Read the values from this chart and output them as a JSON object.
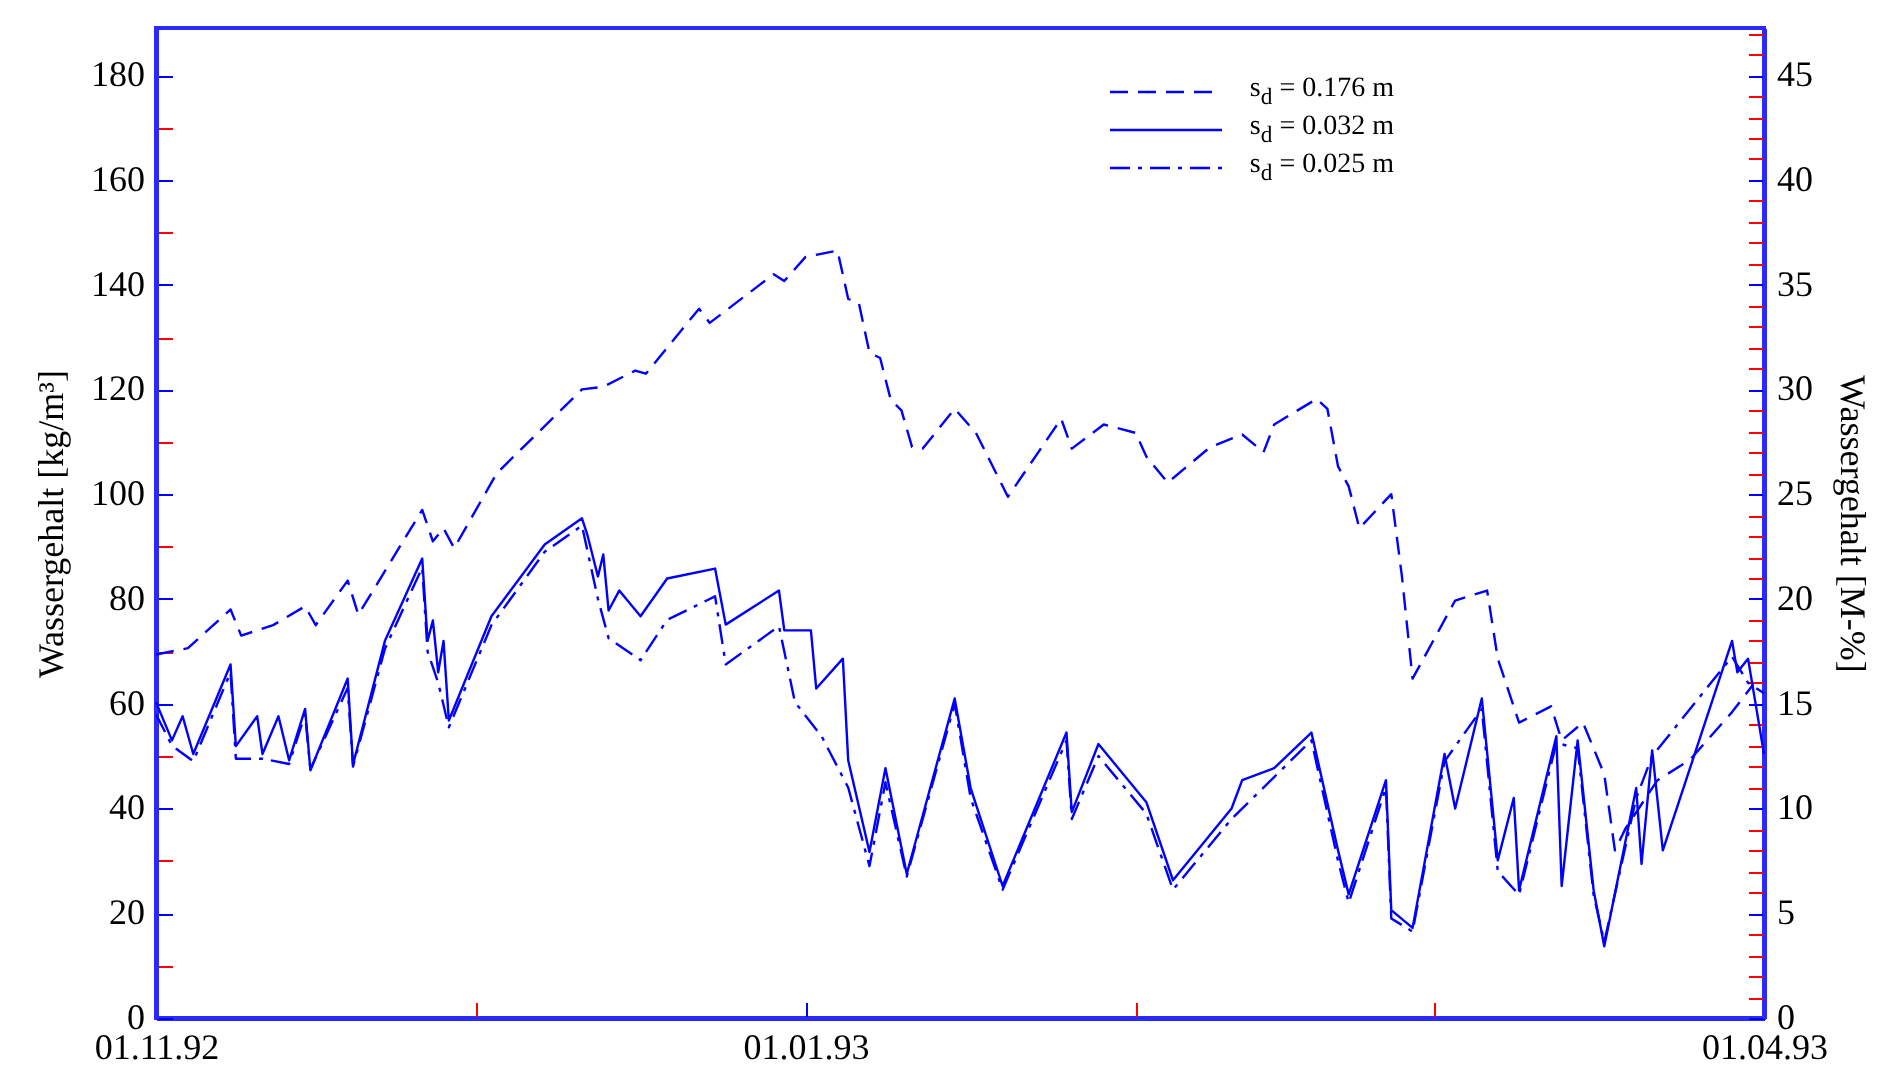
{
  "chart_data": {
    "type": "line",
    "ylabel": "Wassergehalt [kg/m³]",
    "y2label": "Wassergehalt [M-%]",
    "legend": "top right",
    "grid": false,
    "xlim": [
      "1992-11-01",
      "1993-04-01"
    ],
    "xticks": [
      {
        "value": "1992-11-01",
        "label": "01.11.92"
      },
      {
        "value": "1992-12-01",
        "label": null
      },
      {
        "value": "1993-01-01",
        "label": "01.01.93"
      },
      {
        "value": "1993-02-01",
        "label": null
      },
      {
        "value": "1993-03-01",
        "label": null
      },
      {
        "value": "1993-04-01",
        "label": "01.04.93"
      }
    ],
    "ylim": [
      0,
      189
    ],
    "yticks": [
      0,
      {
        "value": 10,
        "label": null
      },
      20,
      {
        "value": 30,
        "label": null
      },
      40,
      {
        "value": 50,
        "label": null
      },
      60,
      {
        "value": 70,
        "label": null
      },
      80,
      {
        "value": 90,
        "label": null
      },
      100,
      {
        "value": 110,
        "label": null
      },
      120,
      {
        "value": 130,
        "label": null
      },
      140,
      {
        "value": 150,
        "label": null
      },
      160,
      {
        "value": 170,
        "label": null
      },
      180
    ],
    "y2lim": [
      0,
      47.25
    ],
    "y2ticks": [
      0,
      {
        "value": 1,
        "label": null
      },
      {
        "value": 2,
        "label": null
      },
      {
        "value": 3,
        "label": null
      },
      {
        "value": 4,
        "label": null
      },
      5,
      {
        "value": 6,
        "label": null
      },
      {
        "value": 7,
        "label": null
      },
      {
        "value": 8,
        "label": null
      },
      {
        "value": 9,
        "label": null
      },
      10,
      {
        "value": 11,
        "label": null
      },
      {
        "value": 12,
        "label": null
      },
      {
        "value": 13,
        "label": null
      },
      {
        "value": 14,
        "label": null
      },
      15,
      {
        "value": 16,
        "label": null
      },
      {
        "value": 17,
        "label": null
      },
      {
        "value": 18,
        "label": null
      },
      {
        "value": 19,
        "label": null
      },
      20,
      {
        "value": 21,
        "label": null
      },
      {
        "value": 22,
        "label": null
      },
      {
        "value": 23,
        "label": null
      },
      {
        "value": 24,
        "label": null
      },
      25,
      {
        "value": 26,
        "label": null
      },
      {
        "value": 27,
        "label": null
      },
      {
        "value": 28,
        "label": null
      },
      {
        "value": 29,
        "label": null
      },
      30,
      {
        "value": 31,
        "label": null
      },
      {
        "value": 32,
        "label": null
      },
      {
        "value": 33,
        "label": null
      },
      {
        "value": 34,
        "label": null
      },
      35,
      {
        "value": 36,
        "label": null
      },
      {
        "value": 37,
        "label": null
      },
      {
        "value": 38,
        "label": null
      },
      {
        "value": 39,
        "label": null
      },
      40,
      {
        "value": 41,
        "label": null
      },
      {
        "value": 42,
        "label": null
      },
      {
        "value": 43,
        "label": null
      },
      {
        "value": 44,
        "label": null
      },
      45,
      {
        "value": 46,
        "label": null
      },
      {
        "value": 47,
        "label": null
      }
    ],
    "series": [
      {
        "name": "s$_{d}$ = 0.176 m",
        "color": "#0000ff",
        "line_style": "dashed",
        "x": [
          "1992-11-01",
          "1992-11-04",
          "1992-11-08",
          "1992-11-09",
          "1992-11-12",
          "1992-11-15",
          "1992-11-16",
          "1992-11-19",
          "1992-11-20",
          "1992-11-26",
          "1992-11-27",
          "1992-11-28",
          "1992-11-29",
          "1992-12-03",
          "1992-12-11",
          "1992-12-13",
          "1992-12-16",
          "1992-12-17",
          "1992-12-22",
          "1992-12-23",
          "1992-12-29",
          "1992-12-30",
          "1993-01-01",
          "1993-01-04",
          "1993-01-05",
          "1993-01-06",
          "1993-01-07",
          "1993-01-08",
          "1993-01-09",
          "1993-01-10",
          "1993-01-11",
          "1993-01-12",
          "1993-01-15",
          "1993-01-17",
          "1993-01-20",
          "1993-01-25",
          "1993-01-26",
          "1993-01-29",
          "1993-02-01",
          "1993-02-02",
          "1993-02-04",
          "1993-02-08",
          "1993-02-11",
          "1993-02-13",
          "1993-02-14",
          "1993-02-18",
          "1993-02-19",
          "1993-02-20",
          "1993-02-21",
          "1993-02-22",
          "1993-02-25",
          "1993-02-26",
          "1993-02-27",
          "1993-03-03",
          "1993-03-06",
          "1993-03-07",
          "1993-03-09",
          "1993-03-12",
          "1993-03-13",
          "1993-03-15",
          "1993-03-17",
          "1993-03-18",
          "1993-03-19",
          "1993-03-22",
          "1993-03-25",
          "1993-03-29",
          "1993-03-31"
        ],
        "values": [
          69.4,
          70.6,
          78,
          73,
          75,
          78.6,
          75,
          83.5,
          77,
          97,
          91,
          93.5,
          89.7,
          104,
          120,
          120.5,
          123.6,
          123,
          135.4,
          132.7,
          142,
          140.7,
          145.3,
          146.5,
          137.3,
          136.5,
          127,
          126,
          118,
          116,
          109,
          108.7,
          116.3,
          111.7,
          99.5,
          114.4,
          108.7,
          113.3,
          111.7,
          107.2,
          102.2,
          109,
          111.4,
          108,
          113.3,
          118.2,
          116.3,
          105.3,
          101.5,
          93.5,
          100,
          84.3,
          64.8,
          79.7,
          81.6,
          68.6,
          56.4,
          59.5,
          53,
          56.4,
          46.5,
          32,
          36.2,
          45.4,
          49.2,
          58.4,
          63.7
        ]
      },
      {
        "name": "s$_{d}$ = 0.032 m",
        "color": "#0000ff",
        "line_style": "solid",
        "x": [
          "1992-11-01",
          "1992-11-02T12:00",
          "1992-11-03T12:00",
          "1992-11-04T12:00",
          "1992-11-08",
          "1992-11-08T12:00",
          "1992-11-10T12:00",
          "1992-11-11",
          "1992-11-12T12:00",
          "1992-11-13T12:00",
          "1992-11-15",
          "1992-11-15T12:00",
          "1992-11-19",
          "1992-11-19T12:00",
          "1992-11-22T12:00",
          "1992-11-26",
          "1992-11-26T12:00",
          "1992-11-27",
          "1992-11-27T12:00",
          "1992-11-28",
          "1992-11-28T12:00",
          "1992-12-02T12:00",
          "1992-12-07T12:00",
          "1992-12-11",
          "1992-12-11T12:00",
          "1992-12-12T12:00",
          "1992-12-13",
          "1992-12-13T12:00",
          "1992-12-14T12:00",
          "1992-12-16T12:00",
          "1992-12-19",
          "1992-12-23T12:00",
          "1992-12-24T12:00",
          "1992-12-29T12:00",
          "1992-12-30",
          "1993-01-01T12:00",
          "1993-01-02",
          "1993-01-04T12:00",
          "1993-01-05",
          "1993-01-07",
          "1993-01-08T12:00",
          "1993-01-10T12:00",
          "1993-01-15",
          "1993-01-16T12:00",
          "1993-01-19T12:00",
          "1993-01-25T12:00",
          "1993-01-26",
          "1993-01-28T12:00",
          "1993-02-02",
          "1993-02-04T12:00",
          "1993-02-10",
          "1993-02-11",
          "1993-02-14",
          "1993-02-17T12:00",
          "1993-02-20",
          "1993-02-21",
          "1993-02-24T12:00",
          "1993-02-25",
          "1993-02-27",
          "1993-03-02",
          "1993-03-03",
          "1993-03-05T12:00",
          "1993-03-07",
          "1993-03-08T12:00",
          "1993-03-09",
          "1993-03-12T12:00",
          "1993-03-13",
          "1993-03-14T12:00",
          "1993-03-16",
          "1993-03-17",
          "1993-03-20",
          "1993-03-20T12:00",
          "1993-03-21T12:00",
          "1993-03-22T12:00",
          "1993-03-29",
          "1993-03-29T12:00",
          "1993-03-30T12:00",
          "1993-04-01"
        ],
        "values": [
          60.3,
          53,
          57.6,
          50.4,
          67.5,
          51.9,
          57.6,
          50.4,
          57.6,
          49.2,
          59,
          47.3,
          64.8,
          48.4,
          72,
          87.7,
          72,
          75.9,
          66,
          72,
          56.8,
          76.7,
          90.4,
          95.4,
          92.3,
          84.3,
          88.5,
          77.8,
          81.6,
          76.7,
          83.9,
          85.8,
          75.1,
          81.6,
          74,
          74,
          62.9,
          68.6,
          49.2,
          31.7,
          47.7,
          27.5,
          61,
          43.9,
          25.2,
          54.5,
          39.3,
          52.3,
          41.2,
          26.3,
          40,
          45.4,
          47.7,
          54.5,
          32,
          23.6,
          45.4,
          20.6,
          17.2,
          50.4,
          40,
          61,
          30.1,
          42,
          24.4,
          53.8,
          25.2,
          53,
          24.4,
          13.7,
          43.9,
          29.4,
          51.1,
          32,
          72,
          66,
          68.6,
          50.4
        ]
      },
      {
        "name": "s$_{d}$ = 0.025 m",
        "color": "#0000ff",
        "line_style": "dashdot",
        "x": [
          "1992-11-01",
          "1992-11-02T12:00",
          "1992-11-04T12:00",
          "1992-11-08",
          "1992-11-08T12:00",
          "1992-11-11",
          "1992-11-13T12:00",
          "1992-11-15",
          "1992-11-15T12:00",
          "1992-11-19",
          "1992-11-19T12:00",
          "1992-11-22T12:00",
          "1992-11-26",
          "1992-11-26T12:00",
          "1992-11-27T12:00",
          "1992-11-28T12:00",
          "1992-12-02T12:00",
          "1992-12-07T12:00",
          "1992-12-11",
          "1992-12-12T12:00",
          "1992-12-13T12:00",
          "1992-12-16T12:00",
          "1992-12-19",
          "1992-12-23T12:00",
          "1992-12-24T12:00",
          "1992-12-29T12:00",
          "1992-12-31",
          "1993-01-02T12:00",
          "1993-01-05",
          "1993-01-07",
          "1993-01-08T12:00",
          "1993-01-10T12:00",
          "1993-01-15",
          "1993-01-16T12:00",
          "1993-01-19T12:00",
          "1993-01-25T12:00",
          "1993-01-26",
          "1993-01-28T12:00",
          "1993-02-02",
          "1993-02-04T12:00",
          "1993-02-10",
          "1993-02-14",
          "1993-02-17T12:00",
          "1993-02-20",
          "1993-02-21",
          "1993-02-24T12:00",
          "1993-02-25",
          "1993-02-27",
          "1993-03-02",
          "1993-03-05T12:00",
          "1993-03-07",
          "1993-03-09",
          "1993-03-12T12:00",
          "1993-03-14T12:00",
          "1993-03-16",
          "1993-03-17",
          "1993-03-20",
          "1993-03-21T12:00",
          "1993-03-29",
          "1993-03-30T12:00",
          "1993-04-01"
        ],
        "values": [
          58,
          52,
          49,
          66,
          49.5,
          49.5,
          48.5,
          58,
          47.5,
          63,
          48,
          70.5,
          86,
          70,
          64,
          55.5,
          75,
          89,
          94,
          80,
          72.5,
          68.3,
          76,
          80.5,
          67.5,
          74.8,
          60.3,
          53.8,
          44,
          29,
          45,
          27,
          60,
          42,
          24.5,
          53,
          38,
          50,
          39,
          24.5,
          38,
          46,
          53,
          30,
          22,
          44,
          19,
          16.5,
          49,
          59,
          28,
          23.5,
          52.5,
          51.5,
          23.5,
          14.5,
          42,
          50,
          69,
          64,
          62
        ]
      }
    ]
  }
}
